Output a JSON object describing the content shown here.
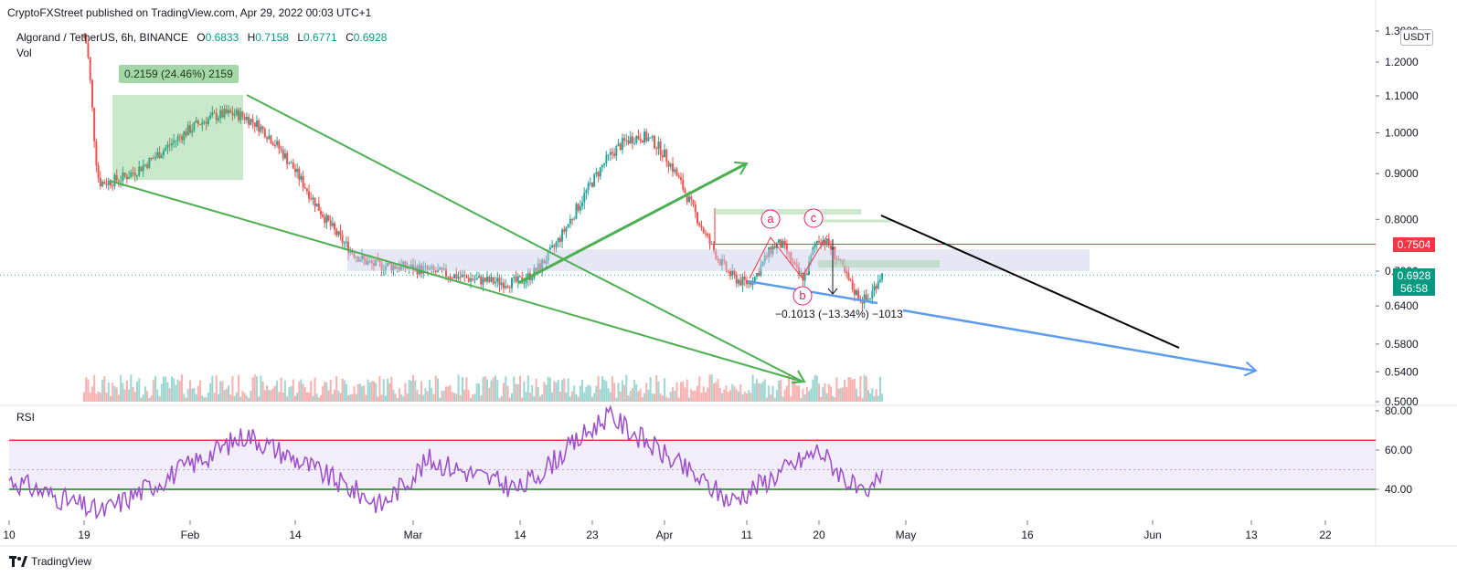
{
  "header": {
    "publisher": "CryptoFXStreet published on TradingView.com, Apr 29, 2022 00:03 UTC+1"
  },
  "legend": {
    "symbol": "Algorand / TetherUS, 6h, BINANCE",
    "open_label": "O",
    "open": "0.6833",
    "high_label": "H",
    "high": "0.7158",
    "low_label": "L",
    "low": "0.6771",
    "close_label": "C",
    "close": "0.6928",
    "vol_label": "Vol",
    "rsi_label": "RSI"
  },
  "price_scale": {
    "currency_button": "USDT",
    "resistance_tag": "0.7504",
    "last_price_tag": "0.6928",
    "countdown": "56:58"
  },
  "annotations": {
    "measure_up": "0.2159 (24.46%) 2159",
    "measure_down": "−0.1013 (−13.34%) −1013",
    "wave_a": "a",
    "wave_b": "b",
    "wave_c": "c"
  },
  "colors": {
    "up": "#26a69a",
    "down": "#ef5350",
    "trendline_green": "#4caf50",
    "trendline_blue": "#5b9cf0",
    "trendline_black": "#000000",
    "resistance": "#f23645",
    "rsi_line": "#9c4dcc",
    "rsi_upper": "#f23645",
    "rsi_lower": "#1b7a1f"
  },
  "footer": {
    "brand": "TradingView"
  },
  "chart_data": [
    {
      "type": "candlestick",
      "title": "Algorand / TetherUS, 6h, BINANCE",
      "x_axis_labels": [
        "10",
        "19",
        "Feb",
        "14",
        "Mar",
        "14",
        "23",
        "Apr",
        "11",
        "20",
        "May",
        "16",
        "Jun",
        "13",
        "22"
      ],
      "y_axis_labels": [
        "1.3000",
        "1.2000",
        "1.1000",
        "1.0000",
        "0.9000",
        "0.8000",
        "0.7000",
        "0.6400",
        "0.5800",
        "0.5400",
        "0.5000"
      ],
      "ylim": [
        0.5,
        1.3
      ],
      "scale": "log",
      "key_price_path": [
        {
          "date": "Jan 19",
          "price": 1.28
        },
        {
          "date": "Jan 21",
          "price": 0.88
        },
        {
          "date": "Feb 6",
          "price": 1.05
        },
        {
          "date": "Feb 25",
          "price": 0.71
        },
        {
          "date": "Mar 13",
          "price": 0.68
        },
        {
          "date": "Mar 29",
          "price": 0.99
        },
        {
          "date": "Apr 11",
          "price": 0.68
        },
        {
          "date": "Apr 15",
          "price": 0.75
        },
        {
          "date": "Apr 18",
          "price": 0.69
        },
        {
          "date": "Apr 20",
          "price": 0.76
        },
        {
          "date": "Apr 26",
          "price": 0.65
        },
        {
          "date": "Apr 28",
          "price": 0.6928
        }
      ],
      "last_close": 0.6928,
      "resistance_level": 0.7504
    },
    {
      "type": "line",
      "title": "RSI",
      "y_axis_labels": [
        "80.00",
        "60.00",
        "40.00"
      ],
      "ylim": [
        25,
        82
      ],
      "upper_band": 65,
      "lower_band": 40,
      "key_points": [
        {
          "date": "Jan 10",
          "rsi": 45
        },
        {
          "date": "Jan 21",
          "rsi": 28
        },
        {
          "date": "Feb 8",
          "rsi": 68
        },
        {
          "date": "Feb 25",
          "rsi": 32
        },
        {
          "date": "Mar 3",
          "rsi": 55
        },
        {
          "date": "Mar 14",
          "rsi": 40
        },
        {
          "date": "Mar 25",
          "rsi": 78
        },
        {
          "date": "Apr 9",
          "rsi": 34
        },
        {
          "date": "Apr 20",
          "rsi": 60
        },
        {
          "date": "Apr 26",
          "rsi": 34
        },
        {
          "date": "Apr 28",
          "rsi": 50
        }
      ]
    }
  ]
}
